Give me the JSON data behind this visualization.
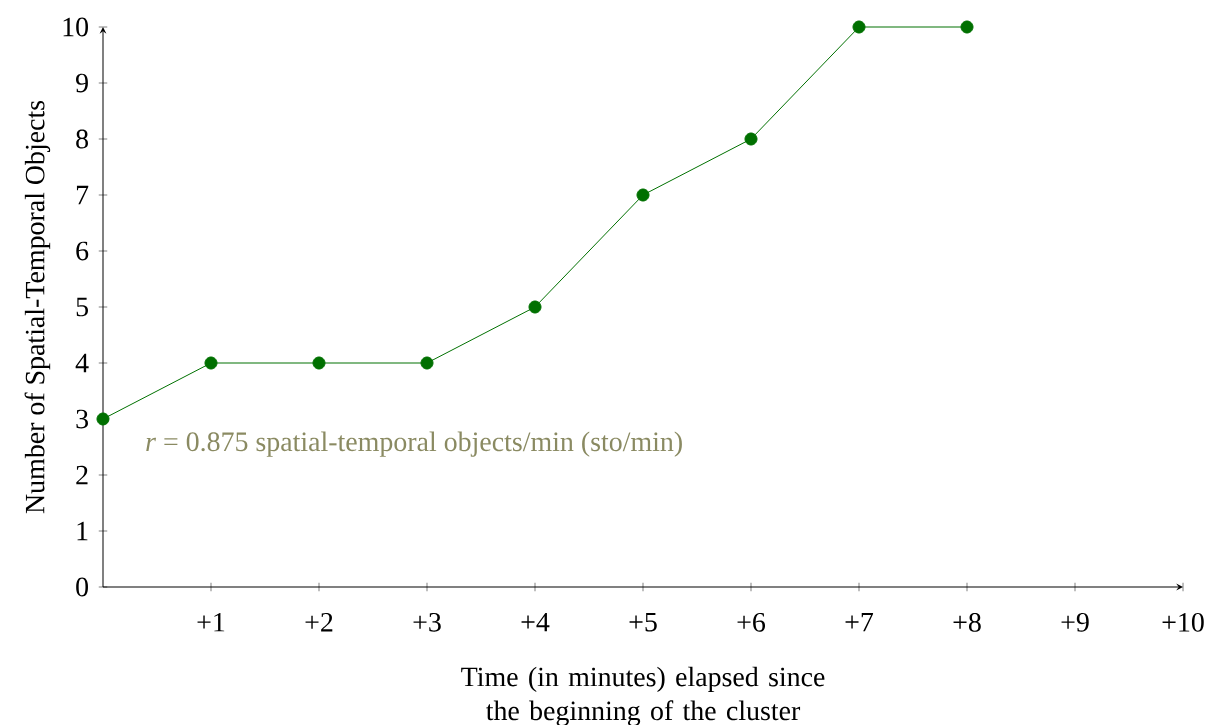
{
  "chart_data": {
    "type": "line",
    "xlabel": "Time (in minutes) elapsed since the beginning of the cluster",
    "ylabel": "Number of Spatial-Temporal Objects",
    "annotations": [
      "*r* = 0.875 spatial-temporal objects/min (sto/min)"
    ],
    "x": [
      0,
      1,
      2,
      3,
      4,
      5,
      6,
      7,
      8
    ],
    "values": [
      3,
      4,
      4,
      4,
      5,
      7,
      8,
      10,
      10
    ],
    "color": "#007000",
    "marker": "circle",
    "line_style": "solid",
    "xlim": [
      0,
      10
    ],
    "xticks": [
      {
        "value": 1,
        "label": "+1"
      },
      {
        "value": 2,
        "label": "+2"
      },
      {
        "value": 3,
        "label": "+3"
      },
      {
        "value": 4,
        "label": "+4"
      },
      {
        "value": 5,
        "label": "+5"
      },
      {
        "value": 6,
        "label": "+6"
      },
      {
        "value": 7,
        "label": "+7"
      },
      {
        "value": 8,
        "label": "+8"
      },
      {
        "value": 9,
        "label": "+9"
      },
      {
        "value": 10,
        "label": "+10"
      }
    ],
    "ylim": [
      0,
      10
    ],
    "yticks": [
      0,
      1,
      2,
      3,
      4,
      5,
      6,
      7,
      8,
      9,
      10
    ]
  }
}
